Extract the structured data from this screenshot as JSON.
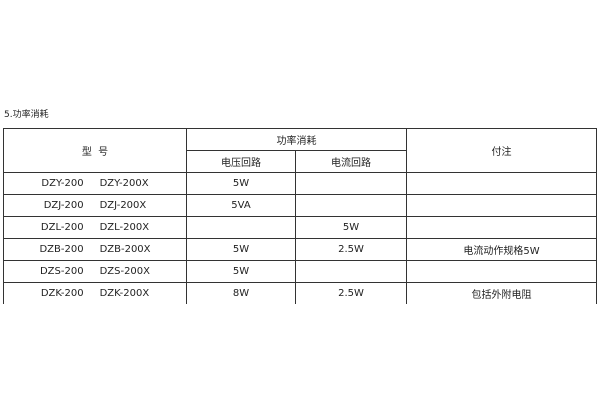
{
  "section_title": "5.功率消耗",
  "table": {
    "headers": {
      "model": "型  号",
      "power": "功率消耗",
      "voltage_circuit": "电压回路",
      "current_circuit": "电流回路",
      "note": "付注"
    },
    "rows": [
      {
        "model_a": "DZY-200",
        "model_b": "DZY-200X",
        "voltage": "5W",
        "current": "",
        "note": ""
      },
      {
        "model_a": "DZJ-200",
        "model_b": "DZJ-200X",
        "voltage": "5VA",
        "current": "",
        "note": ""
      },
      {
        "model_a": "DZL-200",
        "model_b": "DZL-200X",
        "voltage": "",
        "current": "5W",
        "note": ""
      },
      {
        "model_a": "DZB-200",
        "model_b": "DZB-200X",
        "voltage": "5W",
        "current": "2.5W",
        "note": "电流动作规格5W"
      },
      {
        "model_a": "DZS-200",
        "model_b": "DZS-200X",
        "voltage": "5W",
        "current": "",
        "note": ""
      },
      {
        "model_a": "DZK-200",
        "model_b": "DZK-200X",
        "voltage": "8W",
        "current": "2.5W",
        "note": "包括外附电阻"
      }
    ]
  }
}
